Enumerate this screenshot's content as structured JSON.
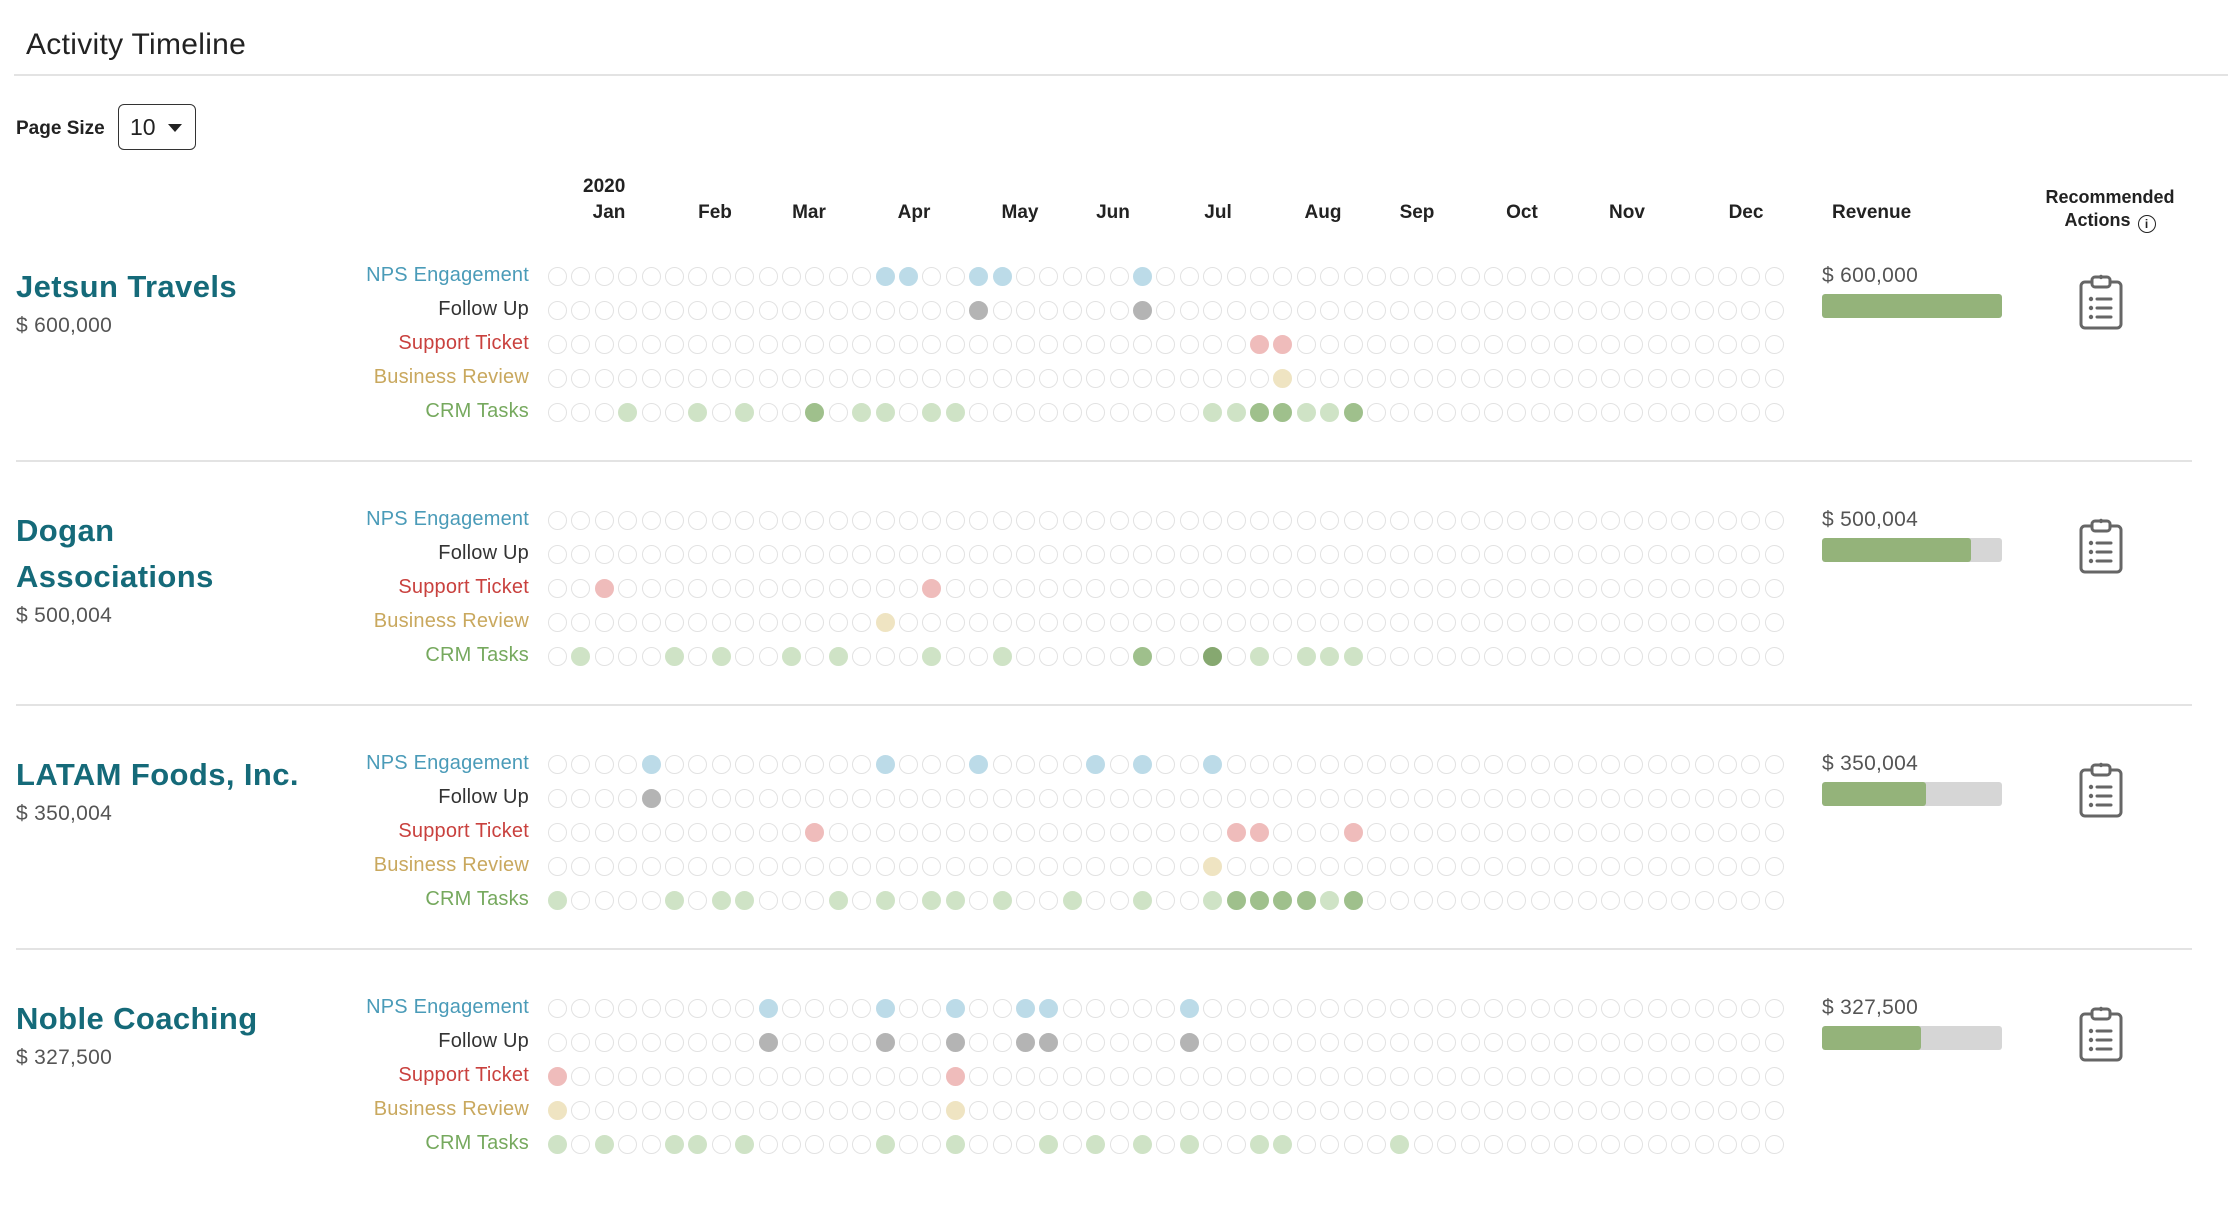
{
  "page": {
    "title": "Activity Timeline"
  },
  "page_size": {
    "label": "Page Size",
    "value": "10"
  },
  "timeline": {
    "year": "2020",
    "months": [
      "Jan",
      "Feb",
      "Mar",
      "Apr",
      "May",
      "Jun",
      "Jul",
      "Aug",
      "Sep",
      "Oct",
      "Nov",
      "Dec"
    ],
    "slots": 53
  },
  "columns": {
    "revenue": "Revenue",
    "recommended_actions": "Recommended Actions"
  },
  "activity_types": [
    {
      "key": "nps",
      "label": "NPS Engagement",
      "label_color": "#4a9bb8"
    },
    {
      "key": "followup",
      "label": "Follow Up",
      "label_color": "#333333"
    },
    {
      "key": "support",
      "label": "Support Ticket",
      "label_color": "#c9413e"
    },
    {
      "key": "review",
      "label": "Business Review",
      "label_color": "#c9a85e"
    },
    {
      "key": "crm",
      "label": "CRM Tasks",
      "label_color": "#76a95e"
    }
  ],
  "colors": {
    "nps": "#bcdbe8",
    "followup": "#b4b4b4",
    "support": "#efbcbb",
    "review": "#efe4c2",
    "crm_light": "#cfe3c6",
    "crm_dark": "#9fc08c",
    "crm_darkest": "#86a870",
    "revenue_fill": "#94b37a",
    "revenue_track": "#d6d6d6",
    "account_name": "#156a79"
  },
  "accounts": [
    {
      "name": "Jetsun Travels",
      "revenue": "$ 600,000",
      "revenue_fraction": 1.0,
      "activities": {
        "nps": [
          14,
          15,
          18,
          19,
          25
        ],
        "followup": [
          18,
          25
        ],
        "support": [
          30,
          31
        ],
        "review": [
          31
        ],
        "crm": {
          "light": [
            3,
            6,
            8,
            13,
            14,
            16,
            17,
            28,
            29,
            32,
            33
          ],
          "dark": [
            11,
            30,
            31,
            34
          ],
          "darkest": []
        }
      }
    },
    {
      "name": "Dogan Associations",
      "revenue": "$ 500,004",
      "revenue_fraction": 0.83,
      "activities": {
        "nps": [],
        "followup": [],
        "support": [
          2,
          16
        ],
        "review": [
          14
        ],
        "crm": {
          "light": [
            1,
            5,
            7,
            10,
            12,
            16,
            19,
            30,
            32,
            33,
            34
          ],
          "dark": [
            25
          ],
          "darkest": [
            28
          ]
        }
      }
    },
    {
      "name": "LATAM Foods, Inc.",
      "revenue": "$ 350,004",
      "revenue_fraction": 0.58,
      "activities": {
        "nps": [
          4,
          14,
          18,
          23,
          25,
          28
        ],
        "followup": [
          4
        ],
        "support": [
          11,
          29,
          30,
          34
        ],
        "review": [
          28
        ],
        "crm": {
          "light": [
            0,
            5,
            7,
            8,
            12,
            14,
            16,
            17,
            19,
            22,
            25,
            28,
            33
          ],
          "dark": [
            29,
            30,
            31,
            32,
            34
          ],
          "darkest": []
        }
      }
    },
    {
      "name": "Noble Coaching",
      "revenue": "$ 327,500",
      "revenue_fraction": 0.55,
      "activities": {
        "nps": [
          9,
          14,
          17,
          20,
          21,
          27
        ],
        "followup": [
          9,
          14,
          17,
          20,
          21,
          27
        ],
        "support": [
          0,
          17
        ],
        "review": [
          0,
          17
        ],
        "crm": {
          "light": [
            0,
            2,
            5,
            6,
            8,
            14,
            17,
            21,
            23,
            25,
            27,
            30,
            31,
            36
          ],
          "dark": [],
          "darkest": []
        }
      }
    }
  ]
}
